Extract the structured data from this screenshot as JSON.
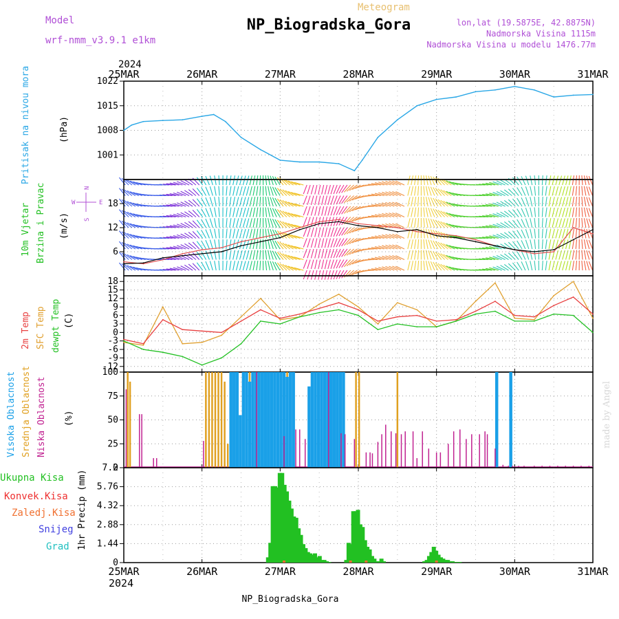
{
  "header": {
    "model_label": "Model",
    "model_name": "wrf-nmm_v3.9.1 e1km",
    "doc_type": "Meteogram",
    "station": "NP_Biogradska_Gora",
    "lonlat": "lon,lat (19.5875E, 42.8875N)",
    "altitude": "Nadmorska Visina 1115m",
    "model_altitude": "Nadmorska Visina u modelu 1476.77m",
    "footer_station": "NP_Biogradska_Gora",
    "credit": "made by Angel",
    "year": "2024"
  },
  "colors": {
    "pressure": "#2aa7e6",
    "wind_speed": "#000000",
    "wind_gust": "#e05050",
    "t2m": "#e84040",
    "tsfc": "#e0a030",
    "dewpt": "#22c022",
    "cloud_high": "#1aa0e8",
    "cloud_mid": "#e0a020",
    "cloud_low": "#c02090",
    "precip_total": "#22c022",
    "conv": "#ee3030",
    "frz": "#f07030",
    "snow": "#4040e0",
    "hail": "#20c0c0"
  },
  "chart_data": [
    {
      "type": "line",
      "panel": "pressure",
      "xlabels": [
        "25MAR",
        "26MAR",
        "27MAR",
        "28MAR",
        "29MAR",
        "30MAR",
        "31MAR"
      ],
      "ylabel_title": "Pritisak na nivou mora",
      "ylabel_unit": "(hPa)",
      "yticks": [
        1001,
        1008,
        1015,
        1022
      ],
      "ylim": [
        994,
        1022
      ],
      "grid": true,
      "series": [
        {
          "name": "Pritisak na nivou mora",
          "x": [
            0,
            0.1,
            0.25,
            0.5,
            0.75,
            1.0,
            1.15,
            1.3,
            1.5,
            1.75,
            2.0,
            2.25,
            2.5,
            2.75,
            2.95,
            3.05,
            3.25,
            3.5,
            3.75,
            4.0,
            4.25,
            4.5,
            4.75,
            5.0,
            5.25,
            5.5,
            5.75,
            6.0
          ],
          "values": [
            1008.0,
            1009.5,
            1010.5,
            1010.8,
            1011.0,
            1012.0,
            1012.5,
            1010.5,
            1006.0,
            1002.5,
            999.5,
            999.0,
            999.0,
            998.5,
            996.5,
            999.5,
            1006.0,
            1011.0,
            1015.0,
            1016.8,
            1017.5,
            1019.0,
            1019.5,
            1020.5,
            1019.5,
            1017.5,
            1018.0,
            1018.2
          ]
        }
      ]
    },
    {
      "type": "line",
      "panel": "wind",
      "ylabel_title": "10m Vjetar Brzina i Pravac",
      "ylabel_unit": "(m/s)",
      "compass": {
        "n": "N",
        "s": "S",
        "e": "E",
        "w": "W"
      },
      "yticks": [
        6,
        12,
        18
      ],
      "ylim": [
        0,
        24
      ],
      "grid": true,
      "series": [
        {
          "name": "speed",
          "x": [
            0,
            0.25,
            0.5,
            0.75,
            1.0,
            1.25,
            1.5,
            1.75,
            2.0,
            2.25,
            2.5,
            2.75,
            3.0,
            3.25,
            3.5,
            3.75,
            4.0,
            4.25,
            4.5,
            4.75,
            5.0,
            5.25,
            5.5,
            5.75,
            6.0
          ],
          "values": [
            3.0,
            3.2,
            4.5,
            5.0,
            5.5,
            6.0,
            7.5,
            8.5,
            9.5,
            11.5,
            13.0,
            13.5,
            12.5,
            12.0,
            11.0,
            11.5,
            10.0,
            9.5,
            8.5,
            7.5,
            6.5,
            6.0,
            6.5,
            9.0,
            11.5
          ]
        },
        {
          "name": "gust",
          "x": [
            0,
            0.25,
            0.5,
            0.75,
            1.0,
            1.25,
            1.5,
            1.75,
            2.0,
            2.25,
            2.5,
            2.75,
            3.0,
            3.25,
            3.5,
            3.75,
            4.0,
            4.25,
            4.5,
            4.75,
            5.0,
            5.25,
            5.5,
            5.75,
            6.0
          ],
          "values": [
            3.5,
            3.0,
            4.0,
            5.5,
            6.5,
            7.0,
            8.5,
            9.5,
            10.5,
            12.0,
            13.5,
            14.0,
            13.0,
            12.5,
            12.0,
            11.0,
            10.5,
            10.0,
            9.0,
            7.5,
            6.5,
            5.5,
            6.0,
            12.0,
            10.5
          ]
        }
      ]
    },
    {
      "type": "line",
      "panel": "temperature",
      "ylabel_title": "2m Temp",
      "ylabel_title2": "SFC Temp",
      "ylabel_title3": "dewpt Temp",
      "ylabel_unit": "(C)",
      "yticks": [
        -12,
        -9,
        -6,
        -3,
        0,
        3,
        6,
        9,
        12,
        15,
        18
      ],
      "ylim": [
        -14,
        20
      ],
      "grid": true,
      "series": [
        {
          "name": "2m Temp",
          "x": [
            0,
            0.25,
            0.5,
            0.75,
            1.0,
            1.25,
            1.5,
            1.75,
            2.0,
            2.25,
            2.5,
            2.75,
            3.0,
            3.25,
            3.5,
            3.75,
            4.0,
            4.25,
            4.5,
            4.75,
            5.0,
            5.25,
            5.5,
            5.75,
            6.0
          ],
          "values": [
            -2.5,
            -4.0,
            4.5,
            1.0,
            0.5,
            0.0,
            4.0,
            8.0,
            5.0,
            6.5,
            8.5,
            10.5,
            8.0,
            4.0,
            5.5,
            6.0,
            4.0,
            4.5,
            7.5,
            11.0,
            6.0,
            5.5,
            9.5,
            12.5,
            6.5
          ]
        },
        {
          "name": "SFC Temp",
          "x": [
            0,
            0.25,
            0.5,
            0.75,
            1.0,
            1.25,
            1.5,
            1.75,
            2.0,
            2.25,
            2.5,
            2.75,
            3.0,
            3.25,
            3.5,
            3.75,
            4.0,
            4.25,
            4.5,
            4.75,
            5.0,
            5.25,
            5.5,
            5.75,
            6.0
          ],
          "values": [
            -3.5,
            -4.5,
            9.0,
            -4.0,
            -3.5,
            -1.0,
            5.5,
            12.0,
            4.5,
            5.5,
            10.0,
            13.5,
            9.0,
            3.0,
            10.5,
            8.0,
            2.0,
            4.0,
            11.0,
            17.5,
            5.0,
            4.5,
            13.0,
            18.0,
            5.0
          ]
        },
        {
          "name": "dewpt Temp",
          "x": [
            0,
            0.25,
            0.5,
            0.75,
            1.0,
            1.25,
            1.5,
            1.75,
            2.0,
            2.25,
            2.5,
            2.75,
            3.0,
            3.25,
            3.5,
            3.75,
            4.0,
            4.25,
            4.5,
            4.75,
            5.0,
            5.25,
            5.5,
            5.75,
            6.0
          ],
          "values": [
            -3.0,
            -6.0,
            -7.0,
            -8.5,
            -11.5,
            -9.0,
            -4.0,
            4.0,
            3.0,
            5.5,
            7.0,
            8.0,
            6.0,
            1.0,
            3.0,
            2.0,
            2.0,
            4.0,
            6.5,
            7.5,
            4.0,
            4.0,
            6.5,
            6.0,
            0.0
          ]
        }
      ]
    },
    {
      "type": "bar",
      "panel": "clouds",
      "ylabel_title": "Visoka Oblacnost",
      "ylabel_title2": "Srednja Oblacnost",
      "ylabel_title3": "Niska Oblacnost",
      "ylabel_unit": "(%)",
      "yticks": [
        0,
        25,
        50,
        75,
        100
      ],
      "ylim": [
        0,
        100
      ],
      "grid": true,
      "series": [
        {
          "name": "Visoka Oblacnost",
          "x": [
            1.37,
            1.41,
            1.45,
            1.49,
            1.53,
            1.57,
            1.61,
            1.65,
            1.69,
            1.73,
            1.77,
            1.81,
            1.85,
            1.89,
            1.93,
            1.97,
            2.01,
            2.05,
            2.09,
            2.13,
            2.17,
            2.37,
            2.41,
            2.45,
            2.49,
            2.53,
            2.57,
            2.61,
            2.65,
            2.69,
            2.73,
            2.77,
            2.81,
            4.77,
            4.95
          ],
          "values": [
            100,
            100,
            100,
            55,
            100,
            100,
            90,
            100,
            100,
            100,
            100,
            100,
            100,
            100,
            100,
            100,
            100,
            100,
            95,
            100,
            100,
            85,
            100,
            100,
            100,
            100,
            100,
            100,
            100,
            100,
            100,
            100,
            100,
            100,
            100
          ]
        },
        {
          "name": "Srednja Oblacnost",
          "x": [
            0.05,
            0.08,
            1.05,
            1.09,
            1.13,
            1.17,
            1.21,
            1.25,
            1.29,
            1.33,
            1.61,
            1.65,
            1.69,
            1.73,
            1.77,
            1.81,
            1.85,
            1.89,
            1.93,
            1.97,
            2.01,
            2.05,
            2.09,
            2.13,
            2.97,
            3.01,
            3.5
          ],
          "values": [
            100,
            90,
            100,
            100,
            100,
            100,
            100,
            100,
            90,
            25,
            100,
            100,
            100,
            100,
            100,
            100,
            100,
            100,
            100,
            100,
            100,
            100,
            100,
            100,
            100,
            100,
            100
          ]
        },
        {
          "name": "Niska Oblacnost",
          "x": [
            0.03,
            0.2,
            0.23,
            0.38,
            0.42,
            1.02,
            1.7,
            2.05,
            2.2,
            2.25,
            2.32,
            2.62,
            2.78,
            2.83,
            2.95,
            3.1,
            3.15,
            3.18,
            3.25,
            3.3,
            3.35,
            3.42,
            3.48,
            3.55,
            3.6,
            3.7,
            3.75,
            3.82,
            3.9,
            4.0,
            4.05,
            4.15,
            4.22,
            4.3,
            4.38,
            4.45,
            4.55,
            4.62,
            4.65,
            4.75,
            4.85,
            4.92,
            4.97,
            5.05,
            5.12,
            5.25,
            5.35,
            5.45,
            5.55,
            5.65,
            5.75,
            5.85,
            5.95
          ],
          "values": [
            82,
            56,
            56,
            10,
            10,
            28,
            100,
            33,
            40,
            40,
            30,
            100,
            36,
            35,
            30,
            16,
            16,
            15,
            27,
            35,
            45,
            38,
            36,
            35,
            38,
            38,
            10,
            38,
            20,
            16,
            16,
            25,
            38,
            40,
            30,
            35,
            35,
            38,
            35,
            20,
            3,
            2,
            2,
            2,
            2,
            2,
            2,
            2,
            2,
            2,
            2,
            2,
            2
          ]
        }
      ]
    },
    {
      "type": "bar",
      "panel": "precipitation",
      "legend": [
        "Ukupna Kisa",
        "Konvek.Kisa",
        "Zaledj.Kisa",
        "Snijeg",
        "Grad"
      ],
      "ylabel_unit": "1hr Precip (mm)",
      "yticks": [
        0,
        1.44,
        2.88,
        4.32,
        5.76,
        7.2
      ],
      "ylim": [
        0,
        7.2
      ],
      "grid": true,
      "series": [
        {
          "name": "Ukupna Kisa",
          "x": [
            1.85,
            1.88,
            1.91,
            1.94,
            1.97,
            2.0,
            2.03,
            2.06,
            2.09,
            2.12,
            2.15,
            2.18,
            2.21,
            2.24,
            2.27,
            2.3,
            2.33,
            2.36,
            2.39,
            2.42,
            2.45,
            2.48,
            2.51,
            2.54,
            2.57,
            2.6,
            2.63,
            2.85,
            2.88,
            2.91,
            2.94,
            2.97,
            3.0,
            3.03,
            3.06,
            3.09,
            3.12,
            3.15,
            3.18,
            3.21,
            3.24,
            3.27,
            3.3,
            3.33,
            3.85,
            3.88,
            3.91,
            3.94,
            3.97,
            4.0,
            4.03,
            4.06,
            4.09,
            4.12,
            4.15,
            4.18,
            4.21,
            4.24,
            4.27,
            4.3
          ],
          "values": [
            0.4,
            1.5,
            5.8,
            5.8,
            5.7,
            6.8,
            6.8,
            5.9,
            5.4,
            4.7,
            4.1,
            3.5,
            3.4,
            2.6,
            2.1,
            1.4,
            1.1,
            0.8,
            0.7,
            0.6,
            0.7,
            0.4,
            0.5,
            0.2,
            0.2,
            0.1,
            0.05,
            0.2,
            1.5,
            1.4,
            3.9,
            3.9,
            4.0,
            2.9,
            2.7,
            1.7,
            1.2,
            1.0,
            0.5,
            0.3,
            0.1,
            0.1,
            0.3,
            0.1,
            0.1,
            0.2,
            0.5,
            0.8,
            1.2,
            0.9,
            0.6,
            0.4,
            0.3,
            0.2,
            0.2,
            0.1,
            0.1,
            0.05,
            0.05,
            0.05
          ]
        }
      ]
    }
  ]
}
